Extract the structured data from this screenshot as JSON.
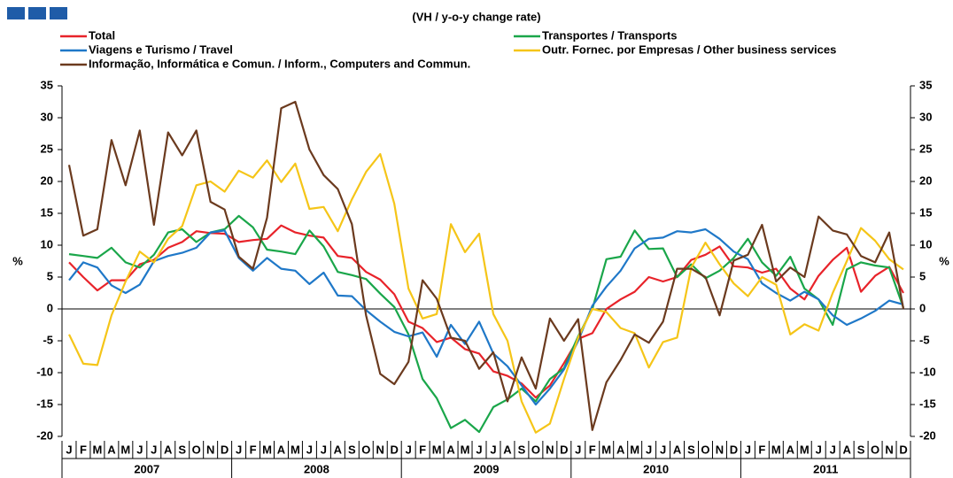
{
  "chart_data": {
    "type": "line",
    "subtitle": "(VH / y-o-y change rate)",
    "y_label": "%",
    "y2_label": "%",
    "categories": [
      "J",
      "F",
      "M",
      "A",
      "M",
      "J",
      "J",
      "A",
      "S",
      "O",
      "N",
      "D",
      "J",
      "F",
      "M",
      "A",
      "M",
      "J",
      "J",
      "A",
      "S",
      "O",
      "N",
      "D",
      "J",
      "F",
      "M",
      "A",
      "M",
      "J",
      "J",
      "A",
      "S",
      "O",
      "N",
      "D",
      "J",
      "F",
      "M",
      "A",
      "M",
      "J",
      "J",
      "A",
      "S",
      "O",
      "N",
      "D",
      "J",
      "F",
      "M",
      "A",
      "M",
      "J",
      "J",
      "A",
      "S",
      "O",
      "N",
      "D"
    ],
    "years": [
      "2007",
      "2008",
      "2009",
      "2010",
      "2011"
    ],
    "ylim": [
      -20,
      35
    ],
    "yticks": [
      -20,
      -15,
      -10,
      -5,
      0,
      5,
      10,
      15,
      20,
      25,
      30,
      35
    ],
    "y2lim": [
      -20,
      35
    ],
    "y2ticks": [
      -20,
      -15,
      -10,
      -5,
      0,
      5,
      10,
      15,
      20,
      25,
      30,
      35
    ],
    "series": [
      {
        "name": "Total",
        "color": "#e8232a",
        "values": [
          7.3,
          5,
          2.9,
          4.5,
          4.5,
          7,
          7.7,
          9.6,
          10.5,
          12.2,
          11.9,
          11.8,
          10.5,
          10.8,
          11,
          13.1,
          12,
          11.5,
          11.2,
          8.3,
          8,
          5.8,
          4.6,
          2.3,
          -2,
          -3,
          -5.2,
          -4.5,
          -6.3,
          -7,
          -9.8,
          -10.5,
          -11.7,
          -13.9,
          -12,
          -8.5,
          -4.7,
          -3.8,
          0,
          1.5,
          2.7,
          5,
          4.3,
          5,
          7.7,
          8.5,
          9.8,
          6.7,
          6.5,
          5.7,
          6.3,
          3.2,
          1.5,
          5.2,
          7.7,
          9.6,
          2.7,
          5.2,
          6.6,
          2.5
        ]
      },
      {
        "name": "Transportes / Transports",
        "color": "#1aa64a",
        "values": [
          8.6,
          8.3,
          8,
          9.6,
          7.3,
          6.5,
          8.5,
          12,
          12.5,
          10.5,
          12,
          12.5,
          14.6,
          12.8,
          9.3,
          9,
          8.6,
          12.3,
          9.8,
          5.8,
          5.3,
          4.7,
          2.4,
          0.3,
          -4,
          -11,
          -14,
          -18.7,
          -17.4,
          -19.3,
          -15.4,
          -14.2,
          -12.5,
          -14.5,
          -11,
          -9.3,
          -4.3,
          0,
          7.8,
          8.2,
          12.3,
          9.4,
          9.5,
          5,
          7,
          4.8,
          6,
          8,
          11,
          7.3,
          5.2,
          8.2,
          3.2,
          1.5,
          -2.5,
          6.2,
          7.3,
          6.8,
          6.5,
          0.2
        ]
      },
      {
        "name": "Viagens e Turismo / Travel",
        "color": "#1f78c8",
        "values": [
          4.5,
          7.3,
          6.5,
          3.7,
          2.5,
          3.8,
          7.5,
          8.3,
          8.8,
          9.6,
          12,
          12.3,
          8,
          6,
          8,
          6.3,
          6,
          3.9,
          5.7,
          2.1,
          2,
          -0.2,
          -2,
          -3.6,
          -4.3,
          -3.7,
          -7.5,
          -2.5,
          -5.5,
          -2,
          -7,
          -9,
          -12,
          -15,
          -12.5,
          -9.5,
          -5,
          0.5,
          3.5,
          6,
          9.5,
          11,
          11.2,
          12.2,
          12,
          12.5,
          11,
          9,
          7.8,
          4,
          2.5,
          1.3,
          2.7,
          1.5,
          -1,
          -2.5,
          -1.5,
          -0.3,
          1.3,
          0.7
        ]
      },
      {
        "name": "Outr. Fornec. por Empresas / Other business services",
        "color": "#f5c518",
        "values": [
          -4,
          -8.6,
          -8.8,
          -1,
          4.3,
          9,
          7.3,
          11,
          13,
          19.4,
          20,
          18.4,
          21.7,
          20.6,
          23.3,
          19.9,
          22.8,
          15.7,
          16,
          12.2,
          17.2,
          21.5,
          24.3,
          16.5,
          3.2,
          -1.5,
          -0.8,
          13.3,
          8.9,
          11.8,
          -0.8,
          -5,
          -14.5,
          -19.4,
          -18,
          -11,
          -4.5,
          0,
          -0.5,
          -3,
          -3.8,
          -9.2,
          -5.2,
          -4.5,
          6.5,
          10.4,
          7,
          4,
          2,
          5,
          3.8,
          -4,
          -2.4,
          -3.4,
          2.5,
          7.5,
          12.7,
          10.7,
          7.8,
          6.2
        ]
      },
      {
        "name": "Informação, Informática e Comun. / Inform., Computers and Commun.",
        "color": "#6b3a1e",
        "values": [
          22.6,
          11.5,
          12.5,
          26.5,
          19.4,
          28,
          13.2,
          27.7,
          24.1,
          28,
          16.8,
          15.6,
          8.2,
          6.3,
          14.3,
          31.5,
          32.5,
          25,
          21,
          18.8,
          13.3,
          -1,
          -10.2,
          -11.8,
          -8.3,
          4.5,
          1.6,
          -4.5,
          -5,
          -9.4,
          -6.8,
          -14.5,
          -7.6,
          -12.5,
          -1.5,
          -5,
          -1.6,
          -19,
          -11.5,
          -8,
          -4,
          -5.3,
          -2,
          6.3,
          6.3,
          5,
          -1,
          7.6,
          8.5,
          13.2,
          4.3,
          6.5,
          5,
          14.5,
          12.3,
          11.7,
          8.3,
          7.3,
          12,
          0
        ]
      }
    ]
  }
}
